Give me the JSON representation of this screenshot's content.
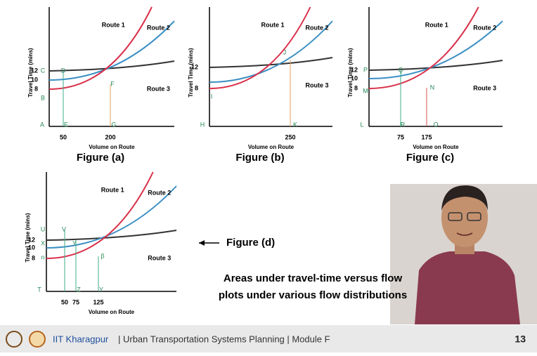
{
  "figures": [
    {
      "caption": "Figure (a)",
      "y_axis_label": "Travel Time (mins)",
      "x_axis_label": "Volume on Route",
      "route_labels": [
        "Route 1",
        "Route 2",
        "Route 3"
      ],
      "y_ticks": [
        "12",
        "10",
        "8"
      ],
      "x_ticks": [
        "50",
        "200"
      ],
      "points": [
        "C",
        "D",
        "B",
        "F",
        "A",
        "E",
        "G"
      ]
    },
    {
      "caption": "Figure (b)",
      "y_axis_label": "Travel Time (mins)",
      "x_axis_label": "Volume on Route",
      "route_labels": [
        "Route 1",
        "Route 2",
        "Route 3"
      ],
      "y_ticks": [
        "12",
        "8"
      ],
      "x_ticks": [
        "250"
      ],
      "points": [
        "J",
        "I",
        "H",
        "K"
      ]
    },
    {
      "caption": "Figure (c)",
      "y_axis_label": "Travel Time (mins)",
      "x_axis_label": "Volume on Route",
      "route_labels": [
        "Route 1",
        "Route 2",
        "Route 3"
      ],
      "y_ticks": [
        "12",
        "10",
        "8"
      ],
      "x_ticks": [
        "75",
        "175"
      ],
      "points": [
        "P",
        "Q",
        "M",
        "N",
        "L",
        "R",
        "O"
      ]
    },
    {
      "caption": "Figure (d)",
      "y_axis_label": "Travel Time (mins)",
      "x_axis_label": "Volume on Route",
      "route_labels": [
        "Route 1",
        "Route 2",
        "Route 3"
      ],
      "y_ticks": [
        "12",
        "10",
        "8"
      ],
      "x_ticks": [
        "50",
        "75",
        "125"
      ],
      "points": [
        "U",
        "V",
        "X",
        "Y",
        "n",
        "β",
        "T",
        "Z",
        "Y"
      ]
    }
  ],
  "caption_lines": [
    "Areas under travel-time versus flow",
    "plots under various flow distributions"
  ],
  "footer": {
    "institution": "IIT Kharagpur",
    "rest": "| Urban Transportation Systems Planning | Module F",
    "page": "13"
  }
}
